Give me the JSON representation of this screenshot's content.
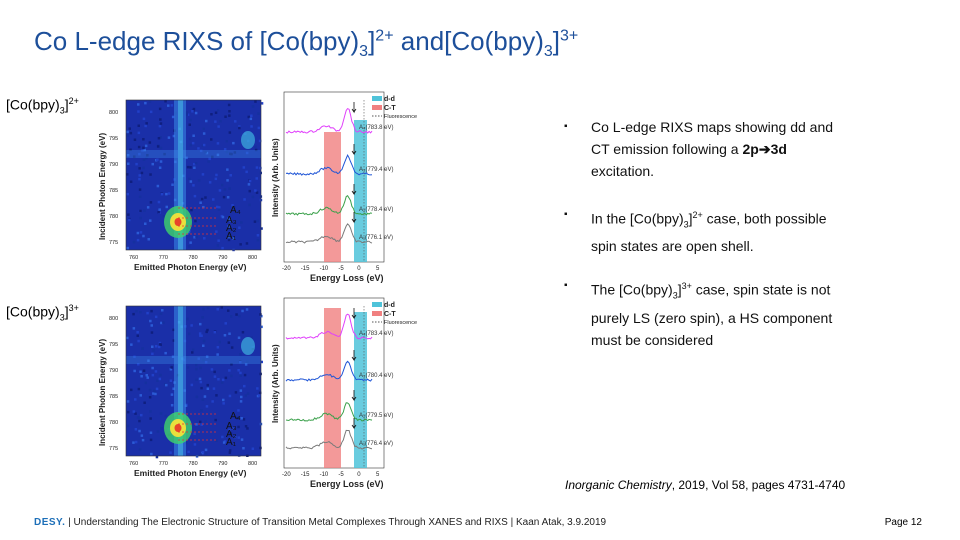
{
  "slide": {
    "title": {
      "prefix": "Co L-edge RIXS of  [Co(bpy)",
      "sub1": "3",
      "mid1": "]",
      "sup1": "2+",
      "mid2": " and[Co(bpy)",
      "sub2": "3",
      "mid3": "]",
      "sup2": "3+"
    },
    "label_top": {
      "a": "[Co(bpy)",
      "sub": "3",
      "b": "]",
      "sup": "2+"
    },
    "label_bottom": {
      "a": "[Co(bpy)",
      "sub": "3",
      "b": "]",
      "sup": "3+"
    },
    "bullets": [
      {
        "text": "Co L-edge RIXS maps showing dd and CT emission following a ",
        "bold_a": "2p",
        "arrow": "➔",
        "bold_b": "3d",
        "tail": " excitation."
      },
      {
        "a": "In the [Co(bpy)",
        "sub": "3",
        "b": "]",
        "sup": "2+",
        "c": " case, both possible spin states are open shell."
      },
      {
        "a": "The [Co(bpy)",
        "sub": "3",
        "b": "]",
        "sup": "3+",
        "c": " case, spin state is not purely LS (zero spin), a HS component must be considered"
      }
    ],
    "citation": {
      "journal": "Inorganic Chemistry",
      "rest": ", 2019, Vol 58, pages 4731-4740"
    },
    "footer": {
      "logo": "DESY.",
      "text": " | Understanding The Electronic Structure of Transition Metal Complexes Through XANES and RIXS | Kaan Atak, 3.9.2019"
    },
    "page": "Page 12"
  },
  "figure_top": {
    "map": {
      "xlabel": "Emitted Photon Energy (eV)",
      "ylabel": "Incident Photon Energy (eV)",
      "xticks": [
        "760",
        "770",
        "780",
        "790",
        "800"
      ],
      "yticks": [
        "800",
        "795",
        "790",
        "785",
        "780",
        "775"
      ],
      "markers": [
        "A₄",
        "A₃",
        "A₂",
        "A₁"
      ]
    },
    "spectra": {
      "xlabel": "Energy Loss (eV)",
      "ylabel": "Intensity (Arb. Units)",
      "xticks": [
        "-20",
        "-15",
        "-10",
        "-5",
        "0",
        "5"
      ],
      "legend": [
        "d-d",
        "C-T",
        "Fluorescence"
      ],
      "annotations": [
        "A₄(783.8 eV)",
        "A₃(779.4 eV)",
        "A₂(778.4 eV)",
        "A₁(776.1 eV)"
      ],
      "colors": {
        "dd": "#4fc3d9",
        "ct": "#f08080",
        "c4": "#e040fb",
        "c3": "#1f55d6",
        "c2": "#3aa04a",
        "c1": "#7a7a7a"
      }
    }
  },
  "figure_bottom": {
    "map": {
      "xlabel": "Emitted Photon Energy (eV)",
      "ylabel": "Incident Photon Energy (eV)",
      "xticks": [
        "760",
        "770",
        "780",
        "790",
        "800"
      ],
      "yticks": [
        "800",
        "795",
        "790",
        "785",
        "780",
        "775"
      ],
      "markers": [
        "A₄",
        "A₃",
        "A₂",
        "A₁"
      ]
    },
    "spectra": {
      "xlabel": "Energy Loss (eV)",
      "ylabel": "Intensity (Arb. Units)",
      "xticks": [
        "-20",
        "-15",
        "-10",
        "-5",
        "0",
        "5"
      ],
      "legend": [
        "d-d",
        "C-T",
        "Fluorescence"
      ],
      "annotations": [
        "A₄(783.4 eV)",
        "A₃(780.4 eV)",
        "A₂(779.5 eV)",
        "A₁(776.4 eV)"
      ],
      "colors": {
        "dd": "#4fc3d9",
        "ct": "#f08080",
        "c4": "#e040fb",
        "c3": "#1f55d6",
        "c2": "#3aa04a",
        "c1": "#7a7a7a"
      }
    }
  }
}
